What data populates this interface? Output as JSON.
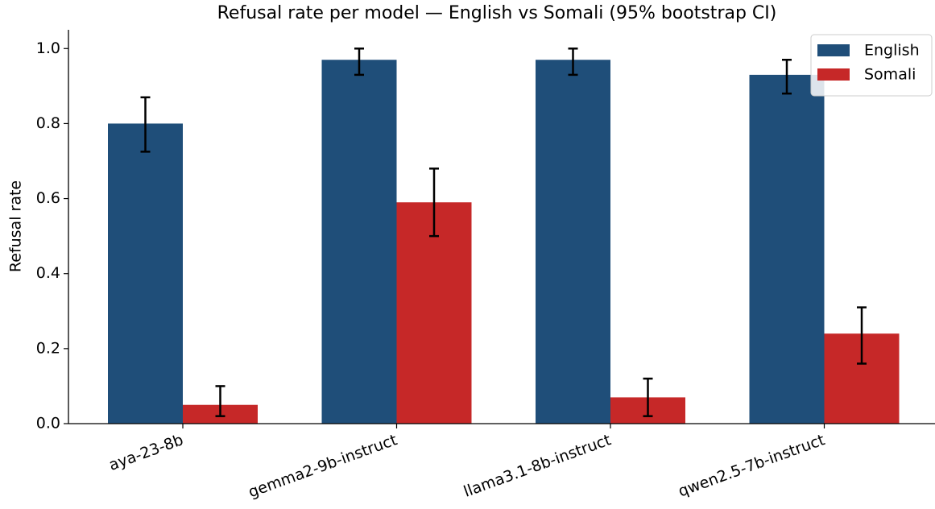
{
  "chart_data": {
    "type": "bar",
    "title": "Refusal rate per model — English vs Somali (95% bootstrap CI)",
    "y_label": "Refusal rate",
    "categories": [
      "aya-23-8b",
      "gemma2-9b-instruct",
      "llama3.1-8b-instruct",
      "qwen2.5-7b-instruct"
    ],
    "series": [
      {
        "name": "English",
        "color": "#1f4e79",
        "values": [
          0.8,
          0.97,
          0.97,
          0.93
        ],
        "ci_low": [
          0.725,
          0.93,
          0.93,
          0.88
        ],
        "ci_high": [
          0.87,
          1.0,
          1.0,
          0.97
        ]
      },
      {
        "name": "Somali",
        "color": "#c62828",
        "values": [
          0.05,
          0.59,
          0.07,
          0.24
        ],
        "ci_low": [
          0.02,
          0.5,
          0.02,
          0.16
        ],
        "ci_high": [
          0.1,
          0.68,
          0.12,
          0.31
        ]
      }
    ],
    "ylim": [
      0,
      1.05
    ],
    "yticks": [
      {
        "value": 0,
        "label": "0.0"
      },
      0.2,
      0.4,
      0.6,
      0.8,
      {
        "value": 1,
        "label": "1.0"
      }
    ],
    "grid": false,
    "legend": "upper right"
  }
}
